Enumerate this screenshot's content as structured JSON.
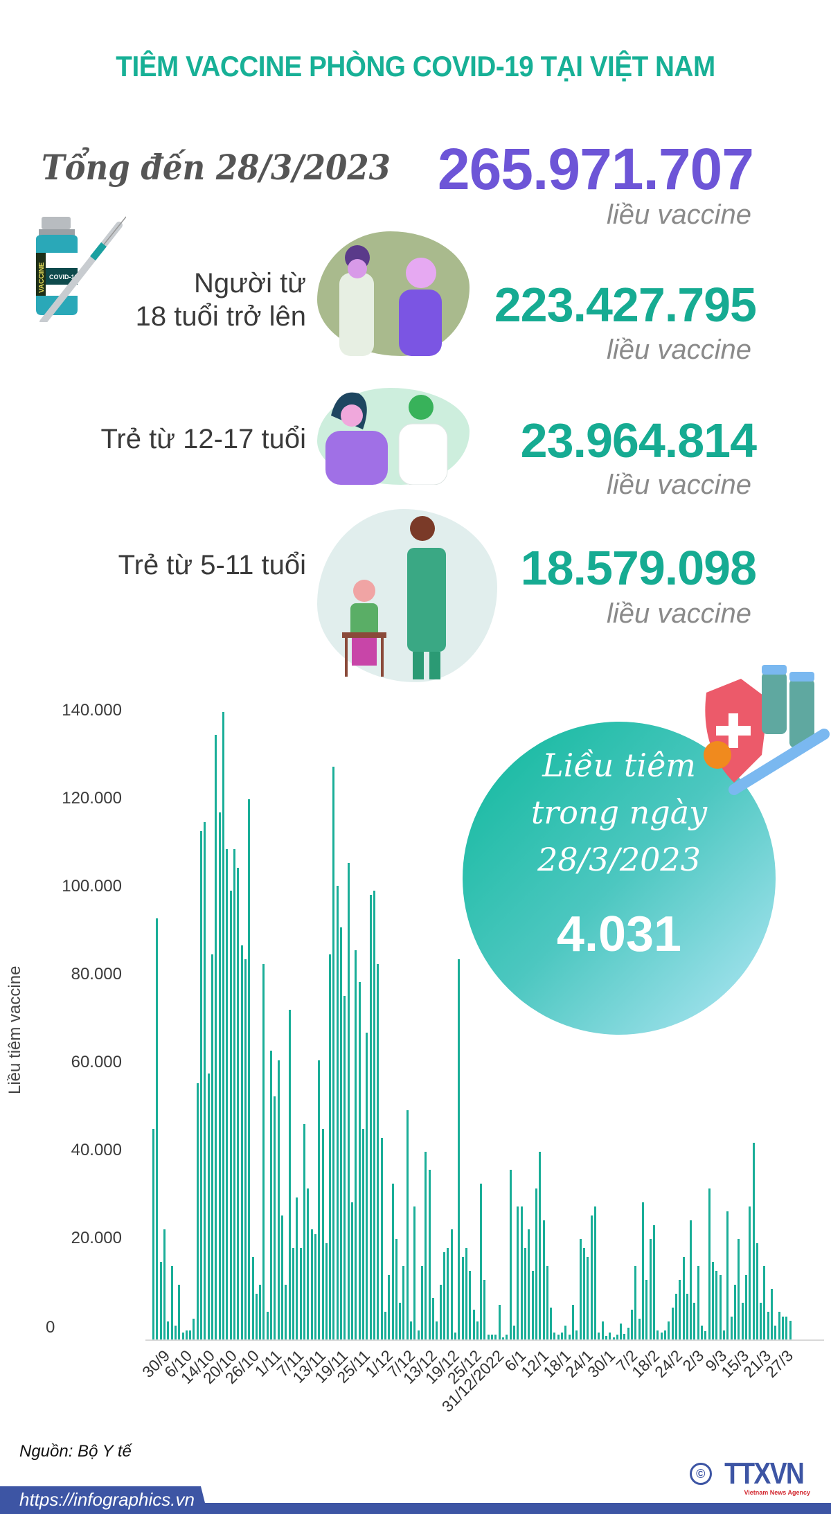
{
  "header": {
    "title": "TIÊM VACCINE PHÒNG COVID-19 TẠI VIỆT NAM"
  },
  "total": {
    "label": "Tổng đến 28/3/2023",
    "value": "265.971.707",
    "unit": "liều vaccine"
  },
  "groups": [
    {
      "label_line1": "Người từ",
      "label_line2": "18 tuổi trở lên",
      "value": "223.427.795",
      "unit": "liều vaccine"
    },
    {
      "label_line1": "Trẻ từ 12-17 tuổi",
      "label_line2": "",
      "value": "23.964.814",
      "unit": "liều vaccine"
    },
    {
      "label_line1": "Trẻ từ 5-11 tuổi",
      "label_line2": "",
      "value": "18.579.098",
      "unit": "liều vaccine"
    }
  ],
  "icons": {
    "vaccine_vial": "vaccine-vial-syringe-icon",
    "vial_label_vertical": "VACCINE",
    "vial_label": "COVID-19",
    "adult_illustration": "adult-vaccination-illustration",
    "teen_illustration": "teen-vaccination-illustration",
    "child_illustration": "child-vaccination-illustration",
    "shield_illustration": "shield-virus-syringe-icon"
  },
  "daily": {
    "line1": "Liều tiêm",
    "line2": "trong ngày",
    "line3": "28/3/2023",
    "value": "4.031"
  },
  "chart_data": {
    "type": "bar",
    "title": "",
    "xlabel": "",
    "ylabel": "Liều tiêm vaccine",
    "ylim": [
      0,
      140000
    ],
    "yticks": [
      "0",
      "20.000",
      "40.000",
      "60.000",
      "80.000",
      "100.000",
      "120.000",
      "140.000"
    ],
    "grid": false,
    "legend": "none",
    "xtick_labels": [
      "30/9",
      "6/10",
      "14/10",
      "20/10",
      "26/10",
      "1/11",
      "7/11",
      "13/11",
      "19/11",
      "25/11",
      "1/12",
      "7/12",
      "13/12",
      "19/12",
      "25/12",
      "31/12/2022",
      "6/1",
      "12/1",
      "18/1",
      "24/1",
      "30/1",
      "7/2",
      "18/2",
      "24/2",
      "2/3",
      "9/3",
      "15/3",
      "21/3",
      "27/3"
    ],
    "values": [
      46000,
      92000,
      17000,
      24000,
      4000,
      16000,
      3000,
      12000,
      1500,
      2000,
      2000,
      4500,
      56000,
      111000,
      113000,
      58000,
      84000,
      132000,
      115000,
      137000,
      107000,
      98000,
      107000,
      103000,
      86000,
      83000,
      118000,
      18000,
      10000,
      12000,
      82000,
      6000,
      63000,
      53000,
      61000,
      27000,
      12000,
      72000,
      20000,
      31000,
      20000,
      47000,
      33000,
      24000,
      23000,
      61000,
      46000,
      21000,
      84000,
      125000,
      99000,
      90000,
      75000,
      104000,
      30000,
      85000,
      78000,
      46000,
      67000,
      97000,
      98000,
      82000,
      44000,
      6000,
      14000,
      34000,
      22000,
      8000,
      16000,
      50000,
      4000,
      29000,
      2000,
      16000,
      41000,
      37000,
      9000,
      4000,
      12000,
      19000,
      20000,
      24000,
      1500,
      83000,
      18000,
      20000,
      15000,
      6500,
      4000,
      34000,
      13000,
      1000,
      1000,
      1000,
      7500,
      500,
      1000,
      37000,
      3000,
      29000,
      29000,
      20000,
      24000,
      15000,
      33000,
      41000,
      26000,
      16000,
      7000,
      1500,
      1000,
      1500,
      3000,
      1000,
      7500,
      2000,
      22000,
      20000,
      18000,
      27000,
      29000,
      1500,
      4000,
      800,
      1500,
      500,
      1000,
      3500,
      1200,
      2500,
      6500,
      16000,
      4500,
      30000,
      13000,
      22000,
      25000,
      2000,
      1500,
      2000,
      4000,
      7000,
      10000,
      13000,
      18000,
      10000,
      26000,
      8000,
      16000,
      3000,
      1800,
      33000,
      17000,
      15000,
      14000,
      2000,
      28000,
      5000,
      12000,
      22000,
      8000,
      14000,
      29000,
      43000,
      21000,
      8000,
      16000,
      6000,
      11000,
      3000,
      6000,
      5000,
      5000,
      4031
    ]
  },
  "footer": {
    "source": "Nguồn: Bộ Y tế",
    "url": "https://infographics.vn",
    "logo_text": "TTXVN",
    "logo_subtitle": "Vietnam News Agency",
    "copyright_symbol": "©"
  },
  "colors": {
    "title": "#17b096",
    "total_value": "#6d55d7",
    "group_value": "#16ab92",
    "bar": "#1aae98",
    "footer": "#3d55a4"
  }
}
